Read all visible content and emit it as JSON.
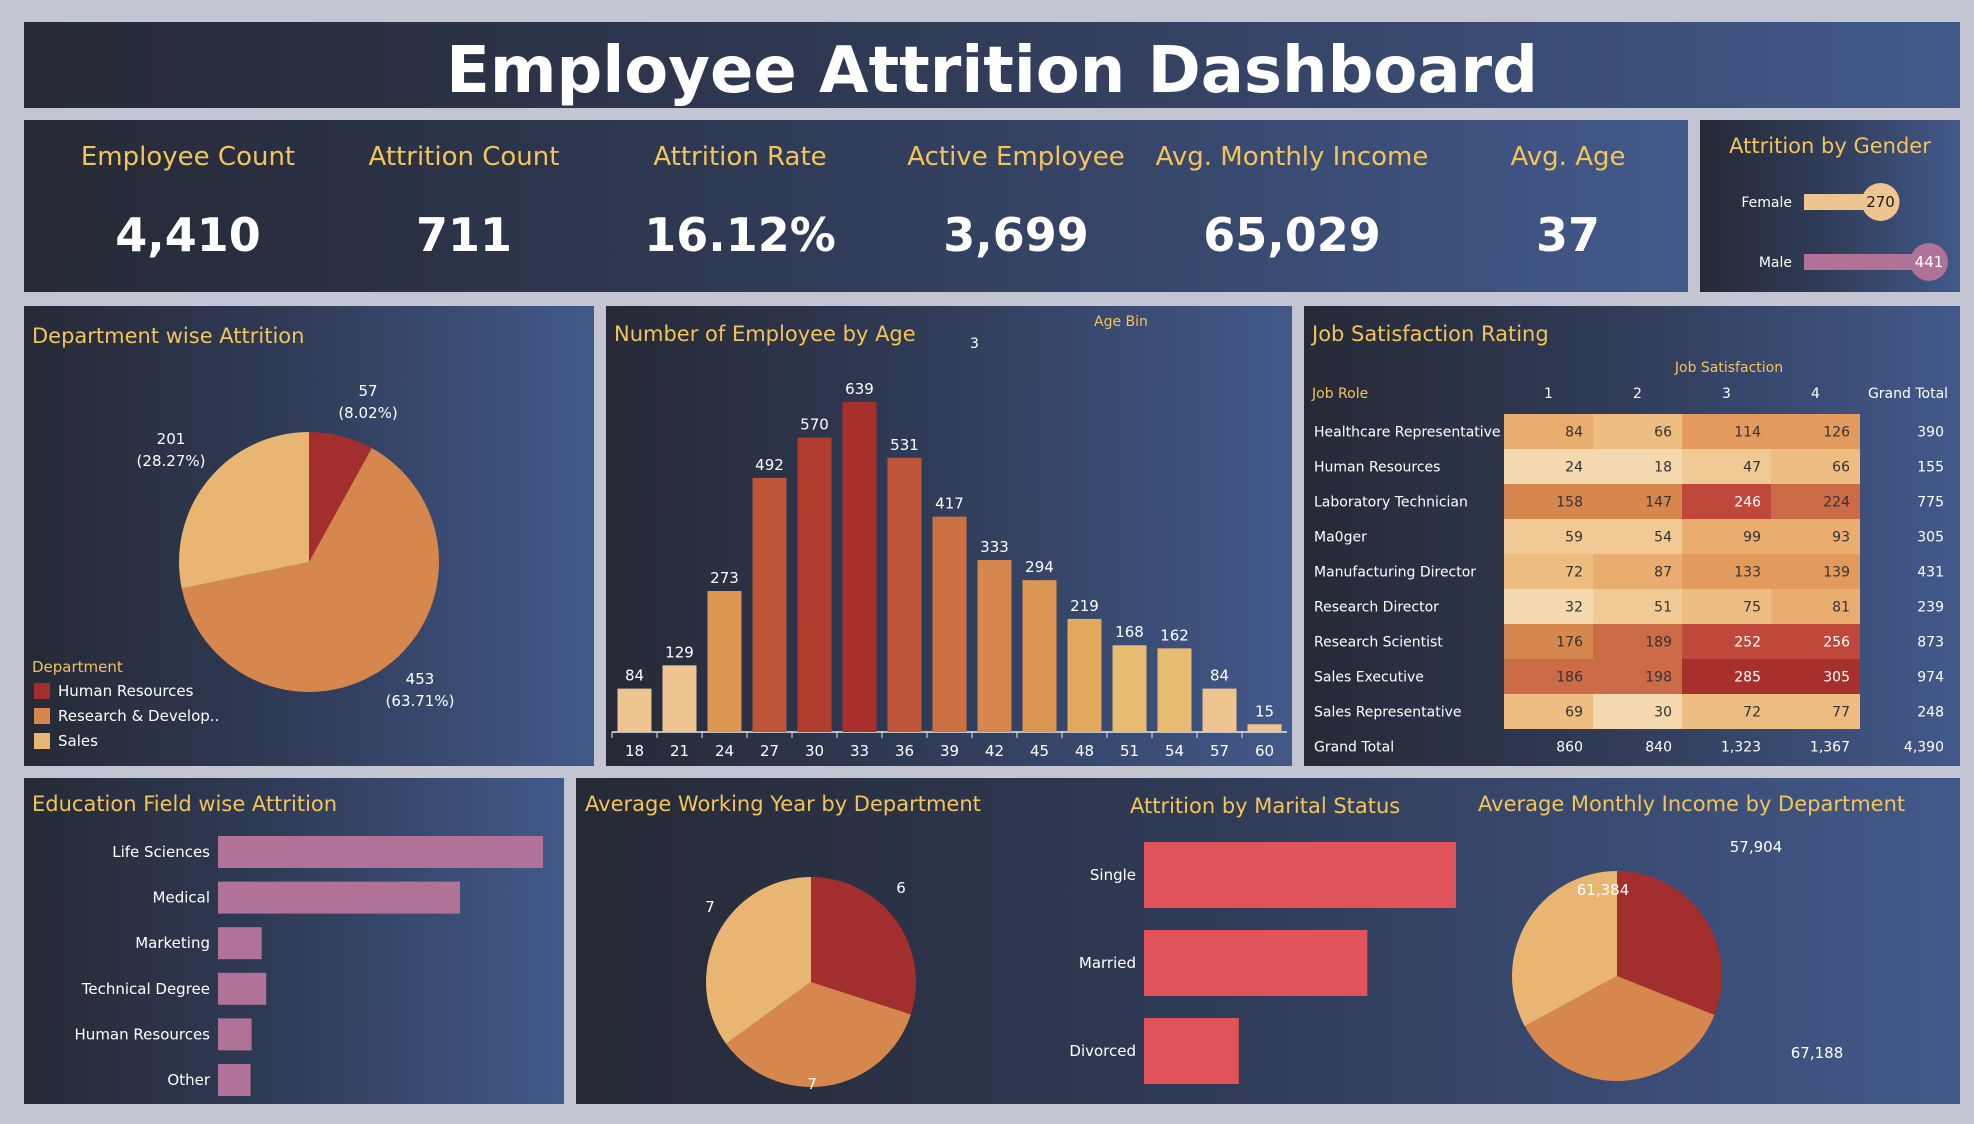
{
  "title": "Employee Attrition Dashboard",
  "kpis": [
    {
      "label": "Employee Count",
      "value": "4,410"
    },
    {
      "label": "Attrition Count",
      "value": "711"
    },
    {
      "label": "Attrition Rate",
      "value": "16.12%"
    },
    {
      "label": "Active Employee",
      "value": "3,699"
    },
    {
      "label": "Avg. Monthly Income",
      "value": "65,029"
    },
    {
      "label": "Avg. Age",
      "value": "37"
    }
  ],
  "colors": {
    "dark_red": "#a32e2e",
    "orange": "#d6874d",
    "light_orange": "#e8b672",
    "pink": "#b07297",
    "coral": "#e05358",
    "gold": "#f2c45a"
  },
  "chart_data": [
    {
      "id": "gender",
      "type": "bar",
      "title": "Attrition by Gender",
      "categories": [
        "Female",
        "Male"
      ],
      "values": [
        270,
        441
      ],
      "colors": [
        "#eec590",
        "#b07297"
      ]
    },
    {
      "id": "department",
      "type": "pie",
      "title": "Department wise Attrition",
      "legend_title": "Department",
      "categories": [
        "Human Resources",
        "Research & Develop..",
        "Sales"
      ],
      "values": [
        57,
        453,
        201
      ],
      "percent_labels": [
        "(8.02%)",
        "(63.71%)",
        "(28.27%)"
      ],
      "colors": [
        "#a32e2e",
        "#d6874d",
        "#e8b672"
      ]
    },
    {
      "id": "age",
      "type": "bar",
      "title": "Number of Employee by Age",
      "legend_title": "Age Bin",
      "legend_value": "3",
      "categories": [
        "18",
        "21",
        "24",
        "27",
        "30",
        "33",
        "36",
        "39",
        "42",
        "45",
        "48",
        "51",
        "54",
        "57",
        "60"
      ],
      "values": [
        84,
        129,
        273,
        492,
        570,
        639,
        531,
        417,
        333,
        294,
        219,
        168,
        162,
        84,
        15
      ],
      "ylim": [
        0,
        639
      ]
    },
    {
      "id": "job_satisfaction",
      "type": "heatmap",
      "title": "Job Satisfaction Rating",
      "column_group": "Job Satisfaction",
      "row_header": "Job Role",
      "columns": [
        "1",
        "2",
        "3",
        "4"
      ],
      "total_label": "Grand Total",
      "rows": [
        {
          "role": "Healthcare Representative",
          "values": [
            84,
            66,
            114,
            126
          ],
          "total": "390"
        },
        {
          "role": "Human Resources",
          "values": [
            24,
            18,
            47,
            66
          ],
          "total": "155"
        },
        {
          "role": "Laboratory Technician",
          "values": [
            158,
            147,
            246,
            224
          ],
          "total": "775"
        },
        {
          "role": "Ma0ger",
          "values": [
            59,
            54,
            99,
            93
          ],
          "total": "305"
        },
        {
          "role": "Manufacturing Director",
          "values": [
            72,
            87,
            133,
            139
          ],
          "total": "431"
        },
        {
          "role": "Research Director",
          "values": [
            32,
            51,
            75,
            81
          ],
          "total": "239"
        },
        {
          "role": "Research Scientist",
          "values": [
            176,
            189,
            252,
            256
          ],
          "total": "873"
        },
        {
          "role": "Sales Executive",
          "values": [
            186,
            198,
            285,
            305
          ],
          "total": "974"
        },
        {
          "role": "Sales Representative",
          "values": [
            69,
            30,
            72,
            77
          ],
          "total": "248"
        }
      ],
      "grand_total_row": {
        "label": "Grand Total",
        "values": [
          "860",
          "840",
          "1,323",
          "1,367"
        ],
        "total": "4,390"
      }
    },
    {
      "id": "education",
      "type": "bar",
      "title": "Education Field wise Attrition",
      "categories": [
        "Life Sciences",
        "Medical",
        "Marketing",
        "Technical Degree",
        "Human Resources",
        "Other"
      ],
      "values": [
        290,
        216,
        39,
        43,
        30,
        29
      ],
      "color": "#b07297"
    },
    {
      "id": "working_year",
      "type": "pie",
      "title": "Average Working Year by Department",
      "values": [
        6,
        7,
        7
      ],
      "labels": [
        "6",
        "7",
        "7"
      ],
      "colors": [
        "#a32e2e",
        "#d6874d",
        "#e8b672"
      ]
    },
    {
      "id": "marital",
      "type": "bar",
      "title": "Attrition by Marital Status",
      "categories": [
        "Single",
        "Married",
        "Divorced"
      ],
      "values": [
        352,
        252,
        107
      ],
      "color": "#e05358"
    },
    {
      "id": "income_dept",
      "type": "pie",
      "title": "Average Monthly Income by Department",
      "values": [
        57904,
        67188,
        61384
      ],
      "labels": [
        "57,904",
        "67,188",
        "61,384"
      ],
      "colors": [
        "#a32e2e",
        "#d6874d",
        "#e8b672"
      ]
    }
  ]
}
